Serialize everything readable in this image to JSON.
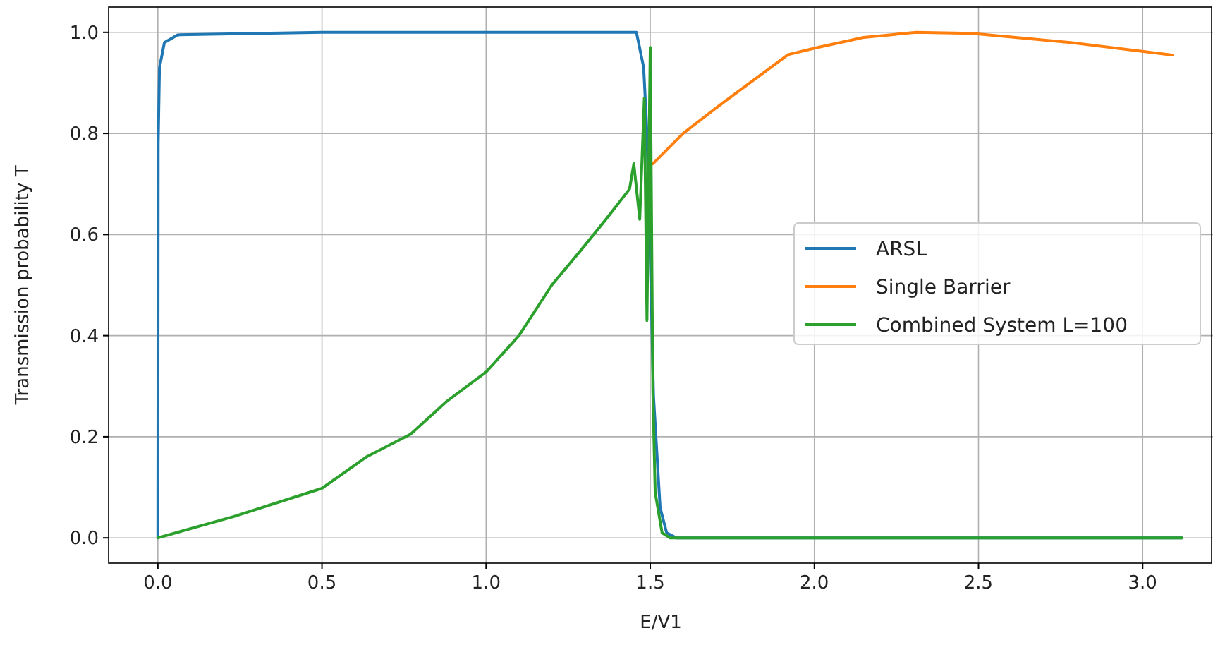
{
  "chart_data": {
    "type": "line",
    "xlabel": "E/V1",
    "ylabel": "Transmission probability T",
    "xlim": [
      -0.15,
      3.21
    ],
    "ylim": [
      -0.05,
      1.05
    ],
    "xticks": [
      {
        "value": 0,
        "label": "0.0"
      },
      {
        "value": 0.5,
        "label": "0.5"
      },
      {
        "value": 1,
        "label": "1.0"
      },
      {
        "value": 1.5,
        "label": "1.5"
      },
      {
        "value": 2,
        "label": "2.0"
      },
      {
        "value": 2.5,
        "label": "2.5"
      },
      {
        "value": 3,
        "label": "3.0"
      }
    ],
    "yticks": [
      {
        "value": 0,
        "label": "0.0"
      },
      {
        "value": 0.2,
        "label": "0.2"
      },
      {
        "value": 0.4,
        "label": "0.4"
      },
      {
        "value": 0.6,
        "label": "0.6"
      },
      {
        "value": 0.8,
        "label": "0.8"
      },
      {
        "value": 1,
        "label": "1.0"
      }
    ],
    "grid": true,
    "legend": "right",
    "line_style": "solid",
    "marker": "none",
    "series": [
      {
        "name": "ARSL",
        "color": "#1f77b4",
        "x": [
          0,
          0.001,
          0.005,
          0.02,
          0.06,
          0.5,
          1.0,
          1.458,
          1.48,
          1.49,
          1.5,
          1.51,
          1.53,
          1.55,
          1.58,
          2.0,
          3.12
        ],
        "values": [
          0,
          0.78,
          0.93,
          0.98,
          0.995,
          1.0,
          1.0,
          1.0,
          0.93,
          0.8,
          0.56,
          0.28,
          0.06,
          0.01,
          0,
          0,
          0
        ]
      },
      {
        "name": "Single Barrier",
        "color": "#ff7f0e",
        "x": [
          1.508,
          1.6,
          1.72,
          1.92,
          2.01,
          2.15,
          2.31,
          2.48,
          2.78,
          3.09
        ],
        "values": [
          0.74,
          0.8,
          0.86,
          0.956,
          0.97,
          0.99,
          1.0,
          0.998,
          0.98,
          0.955
        ]
      },
      {
        "name": "Combined System L=100",
        "color": "#2ca02c",
        "x": [
          0,
          0.23,
          0.5,
          0.635,
          0.77,
          0.88,
          1.0,
          1.1,
          1.2,
          1.29,
          1.365,
          1.437,
          1.45,
          1.468,
          1.482,
          1.49,
          1.5,
          1.508,
          1.515,
          1.536,
          1.56,
          2.0,
          3.12
        ],
        "values": [
          0,
          0.042,
          0.098,
          0.16,
          0.205,
          0.27,
          0.328,
          0.4,
          0.5,
          0.57,
          0.63,
          0.69,
          0.74,
          0.63,
          0.87,
          0.43,
          0.97,
          0.29,
          0.09,
          0.01,
          0,
          0,
          0
        ]
      }
    ]
  }
}
